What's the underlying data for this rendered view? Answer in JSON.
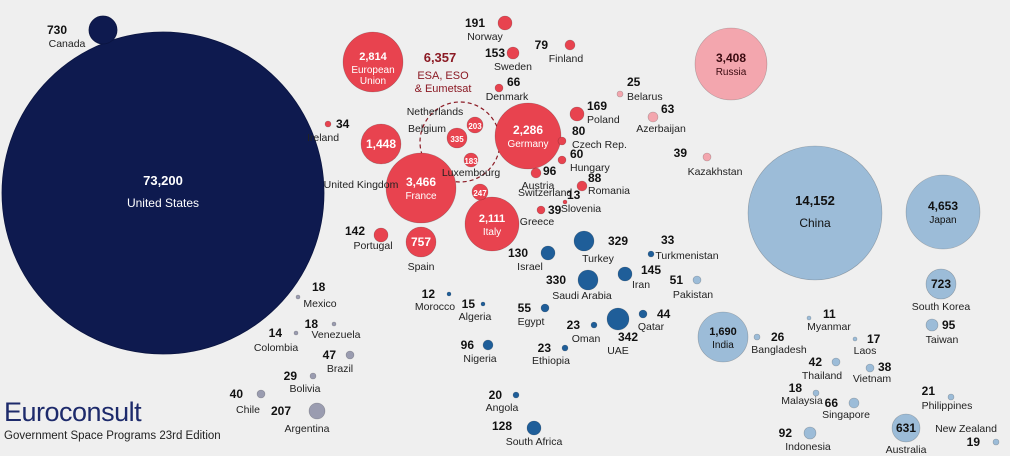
{
  "brand": {
    "logo_text": "Euroconsult",
    "edition": "Government Space Programs 23rd Edition"
  },
  "colors": {
    "usa": "#0e1a4f",
    "europe": "#e8434f",
    "russia": "#f3a6ae",
    "asia": "#9cbcd8",
    "middle_east_africa": "#1f5e99",
    "latin_america": "#9a9cb0"
  },
  "chart_data": {
    "type": "bubble",
    "title": "",
    "groups": [
      "usa",
      "europe",
      "russia",
      "asia",
      "middle_east_africa",
      "latin_america"
    ],
    "points": [
      {
        "name": "United States",
        "value": "73,200",
        "group": "usa"
      },
      {
        "name": "Canada",
        "value": "730",
        "group": "usa"
      },
      {
        "name": "European Union",
        "value": "2,814",
        "group": "europe"
      },
      {
        "name": "ESA, ESO & Eumetsat",
        "value": "6,357",
        "group": "europe"
      },
      {
        "name": "France",
        "value": "3,466",
        "group": "europe"
      },
      {
        "name": "Germany",
        "value": "2,286",
        "group": "europe"
      },
      {
        "name": "Italy",
        "value": "2,111",
        "group": "europe"
      },
      {
        "name": "United Kingdom",
        "value": "1,448",
        "group": "europe"
      },
      {
        "name": "Spain",
        "value": "757",
        "group": "europe"
      },
      {
        "name": "Belgium",
        "value": "335",
        "group": "europe"
      },
      {
        "name": "Switzerland",
        "value": "247",
        "group": "europe"
      },
      {
        "name": "Netherlands",
        "value": "203",
        "group": "europe"
      },
      {
        "name": "Norway",
        "value": "191",
        "group": "europe"
      },
      {
        "name": "Luxembourg",
        "value": "183",
        "group": "europe"
      },
      {
        "name": "Poland",
        "value": "169",
        "group": "europe"
      },
      {
        "name": "Sweden",
        "value": "153",
        "group": "europe"
      },
      {
        "name": "Portugal",
        "value": "142",
        "group": "europe"
      },
      {
        "name": "Austria",
        "value": "96",
        "group": "europe"
      },
      {
        "name": "Romania",
        "value": "88",
        "group": "europe"
      },
      {
        "name": "Czech Rep.",
        "value": "80",
        "group": "europe"
      },
      {
        "name": "Finland",
        "value": "79",
        "group": "europe"
      },
      {
        "name": "Denmark",
        "value": "66",
        "group": "europe"
      },
      {
        "name": "Hungary",
        "value": "60",
        "group": "europe"
      },
      {
        "name": "Greece",
        "value": "39",
        "group": "europe"
      },
      {
        "name": "Ireland",
        "value": "34",
        "group": "europe"
      },
      {
        "name": "Slovenia",
        "value": "13",
        "group": "europe"
      },
      {
        "name": "Russia",
        "value": "3,408",
        "group": "russia"
      },
      {
        "name": "Azerbaijan",
        "value": "63",
        "group": "russia"
      },
      {
        "name": "Kazakhstan",
        "value": "39",
        "group": "russia"
      },
      {
        "name": "Belarus",
        "value": "25",
        "group": "russia"
      },
      {
        "name": "China",
        "value": "14,152",
        "group": "asia"
      },
      {
        "name": "Japan",
        "value": "4,653",
        "group": "asia"
      },
      {
        "name": "India",
        "value": "1,690",
        "group": "asia"
      },
      {
        "name": "South Korea",
        "value": "723",
        "group": "asia"
      },
      {
        "name": "Australia",
        "value": "631",
        "group": "asia"
      },
      {
        "name": "Taiwan",
        "value": "95",
        "group": "asia"
      },
      {
        "name": "Indonesia",
        "value": "92",
        "group": "asia"
      },
      {
        "name": "Singapore",
        "value": "66",
        "group": "asia"
      },
      {
        "name": "Thailand",
        "value": "42",
        "group": "asia"
      },
      {
        "name": "Vietnam",
        "value": "38",
        "group": "asia"
      },
      {
        "name": "Bangladesh",
        "value": "26",
        "group": "asia"
      },
      {
        "name": "Philippines",
        "value": "21",
        "group": "asia"
      },
      {
        "name": "New Zealand",
        "value": "19",
        "group": "asia"
      },
      {
        "name": "Malaysia",
        "value": "18",
        "group": "asia"
      },
      {
        "name": "Laos",
        "value": "17",
        "group": "asia"
      },
      {
        "name": "Myanmar",
        "value": "11",
        "group": "asia"
      },
      {
        "name": "UAE",
        "value": "342",
        "group": "middle_east_africa"
      },
      {
        "name": "Saudi Arabia",
        "value": "330",
        "group": "middle_east_africa"
      },
      {
        "name": "Turkey",
        "value": "329",
        "group": "middle_east_africa"
      },
      {
        "name": "Iran",
        "value": "145",
        "group": "middle_east_africa"
      },
      {
        "name": "Israel",
        "value": "130",
        "group": "middle_east_africa"
      },
      {
        "name": "South Africa",
        "value": "128",
        "group": "middle_east_africa"
      },
      {
        "name": "Nigeria",
        "value": "96",
        "group": "middle_east_africa"
      },
      {
        "name": "Egypt",
        "value": "55",
        "group": "middle_east_africa"
      },
      {
        "name": "Pakistan",
        "value": "51",
        "group": "asia"
      },
      {
        "name": "Qatar",
        "value": "44",
        "group": "middle_east_africa"
      },
      {
        "name": "Turkmenistan",
        "value": "33",
        "group": "middle_east_africa"
      },
      {
        "name": "Oman",
        "value": "23",
        "group": "middle_east_africa"
      },
      {
        "name": "Ethiopia",
        "value": "23",
        "group": "middle_east_africa"
      },
      {
        "name": "Angola",
        "value": "20",
        "group": "middle_east_africa"
      },
      {
        "name": "Algeria",
        "value": "15",
        "group": "middle_east_africa"
      },
      {
        "name": "Morocco",
        "value": "12",
        "group": "middle_east_africa"
      },
      {
        "name": "Argentina",
        "value": "207",
        "group": "latin_america"
      },
      {
        "name": "Brazil",
        "value": "47",
        "group": "latin_america"
      },
      {
        "name": "Chile",
        "value": "40",
        "group": "latin_america"
      },
      {
        "name": "Bolivia",
        "value": "29",
        "group": "latin_america"
      },
      {
        "name": "Mexico",
        "value": "18",
        "group": "latin_america"
      },
      {
        "name": "Venezuela",
        "value": "18",
        "group": "latin_america"
      },
      {
        "name": "Colombia",
        "value": "14",
        "group": "latin_america"
      }
    ]
  }
}
